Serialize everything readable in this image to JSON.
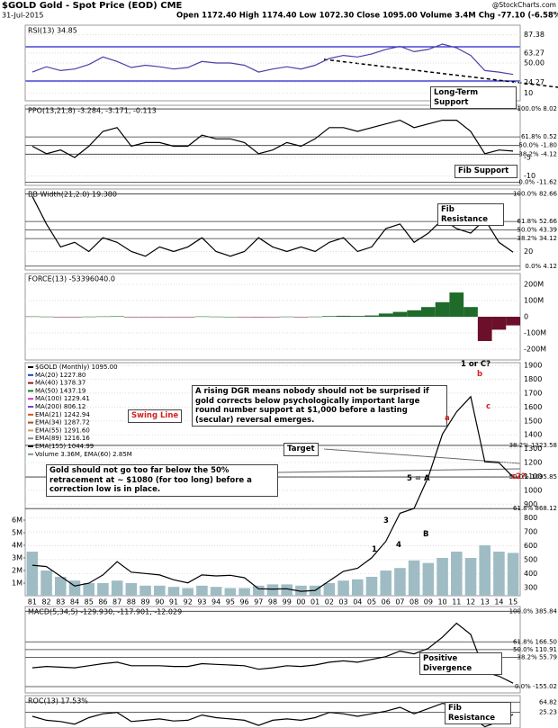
{
  "header": {
    "symbol": "$GOLD Gold - Spot Price (EOD) CME",
    "date": "31-Jul-2015",
    "quote": "Open 1172.40  High 1174.40  Low 1072.30  Close 1095.00  Volume 3.4M  Chg -77.10 (-6.58%)",
    "source": "@StockCharts.com"
  },
  "chart_data": [
    {
      "type": "line",
      "title": "RSI(13) 34.85",
      "color": "#4b3fa8",
      "values": [
        38,
        45,
        40,
        42,
        48,
        58,
        52,
        44,
        47,
        45,
        42,
        44,
        52,
        50,
        50,
        47,
        38,
        42,
        45,
        42,
        47,
        56,
        60,
        58,
        62,
        68,
        72,
        65,
        68,
        75,
        70,
        60,
        40,
        38,
        34.85
      ],
      "ylim": [
        0,
        100
      ],
      "yticks": [
        10,
        24.27,
        {
          "value": 50,
          "label": "50.00"
        },
        63.27,
        87.38
      ],
      "annotations": [
        "Long-Term Support"
      ]
    },
    {
      "type": "line",
      "title": "PPO(13,21,8) -3.284, -3.171, -0.113",
      "color": "#000000",
      "values": [
        -2,
        -4,
        -3,
        -5,
        -2,
        2,
        3,
        -2,
        -1,
        -1,
        -2,
        -2,
        1,
        0,
        0,
        -1,
        -4,
        -3,
        -1,
        -2,
        0,
        3,
        3,
        2,
        3,
        4,
        5,
        3,
        4,
        5,
        5,
        2,
        -4,
        -3,
        -3.284
      ],
      "ylim": [
        -12.5,
        9
      ],
      "yticks": [
        -10,
        -5
      ],
      "fibs": [
        {
          "value": 8.02,
          "label": "100.0% 8.02"
        },
        {
          "value": 0.52,
          "label": "61.8% 0.52"
        },
        {
          "value": -1.8,
          "label": "50.0% -1.80"
        },
        {
          "value": -4.12,
          "label": "38.2% -4.12"
        },
        {
          "value": -11.62,
          "label": "0.0% -11.62"
        }
      ],
      "annotations": [
        "Fib Support"
      ]
    },
    {
      "type": "line",
      "title": "BB Width(21,2.0) 19.380",
      "color": "#000000",
      "values": [
        80,
        50,
        25,
        30,
        20,
        35,
        30,
        20,
        15,
        25,
        20,
        25,
        35,
        20,
        15,
        20,
        35,
        25,
        20,
        25,
        20,
        30,
        35,
        20,
        25,
        45,
        50,
        30,
        40,
        55,
        45,
        40,
        55,
        30,
        19.38
      ],
      "ylim": [
        0,
        88
      ],
      "yticks": [
        20
      ],
      "fibs": [
        {
          "value": 82.66,
          "label": "100.0% 82.66"
        },
        {
          "value": 52.66,
          "label": "61.8% 52.66"
        },
        {
          "value": 43.39,
          "label": "50.0% 43.39"
        },
        {
          "value": 34.12,
          "label": "38.2% 34.12"
        },
        {
          "value": 4.12,
          "label": "0.0% 4.12"
        }
      ],
      "annotations": [
        "Fib Resistance"
      ]
    },
    {
      "type": "bar",
      "title": "FORCE(13) -53396040.0",
      "color": "#1f6b2a",
      "negative_color": "#6b0f2a",
      "values": [
        2000000,
        1000000,
        -1000000,
        -2000000,
        1000000,
        2000000,
        3000000,
        -1000000,
        -1000000,
        -1000000,
        -1000000,
        -1000000,
        2000000,
        1000000,
        0,
        -1000000,
        -3000000,
        -1000000,
        1000000,
        -1000000,
        1000000,
        4000000,
        6000000,
        5000000,
        8000000,
        20000000,
        30000000,
        40000000,
        60000000,
        90000000,
        150000000,
        60000000,
        -150000000,
        -80000000,
        -53396040
      ],
      "ylim": [
        -267000000,
        267000000
      ],
      "yticks": [
        {
          "value": -200000000,
          "label": "-200M"
        },
        {
          "value": -100000000,
          "label": "-100M"
        },
        0,
        {
          "value": 100000000,
          "label": "100M"
        },
        {
          "value": 200000000,
          "label": "200M"
        }
      ]
    },
    {
      "type": "line",
      "categories": [
        "81",
        "82",
        "83",
        "84",
        "85",
        "86",
        "87",
        "88",
        "89",
        "90",
        "91",
        "92",
        "93",
        "94",
        "95",
        "96",
        "97",
        "98",
        "99",
        "00",
        "01",
        "02",
        "03",
        "04",
        "05",
        "06",
        "07",
        "08",
        "09",
        "10",
        "11",
        "12",
        "13",
        "14",
        "15"
      ],
      "series": [
        {
          "name": "$GOLD (Monthly) 1095.00",
          "color": "#000000",
          "values": [
            460,
            450,
            380,
            310,
            330,
            390,
            485,
            410,
            400,
            390,
            355,
            333,
            390,
            383,
            387,
            370,
            290,
            288,
            290,
            272,
            278,
            347,
            416,
            438,
            513,
            632,
            834,
            869,
            1096,
            1405,
            1565,
            1675,
            1205,
            1199,
            1095
          ]
        },
        {
          "name": "Volume 3.36M, EMA(60) 2.85M",
          "color": "#9fbcc4",
          "axis": "y2",
          "values": [
            3500000,
            2000000,
            1500000,
            1200000,
            1000000,
            1000000,
            1200000,
            1000000,
            800000,
            800000,
            700000,
            600000,
            800000,
            700000,
            600000,
            600000,
            800000,
            900000,
            900000,
            800000,
            800000,
            1000000,
            1200000,
            1300000,
            1500000,
            2000000,
            2200000,
            2800000,
            2600000,
            3000000,
            3500000,
            3000000,
            4000000,
            3500000,
            3400000
          ]
        }
      ],
      "overlays": [
        {
          "name": "MA(20) 1227.80",
          "color": "#1f3fbf"
        },
        {
          "name": "MA(40) 1378.37",
          "color": "#8b1a1a"
        },
        {
          "name": "MA(50) 1437.19",
          "color": "#1a7a3a"
        },
        {
          "name": "MA(100) 1229.41",
          "color": "#d633c8"
        },
        {
          "name": "MA(200) 806.12",
          "color": "#7a3fd6"
        },
        {
          "name": "EMA(21) 1242.94",
          "color": "#e0501a"
        },
        {
          "name": "EMA(34) 1287.72",
          "color": "#a0522d"
        },
        {
          "name": "EMA(55) 1291.60",
          "color": "#c8a060"
        },
        {
          "name": "EMA(89) 1216.16",
          "color": "#9a8a7a"
        },
        {
          "name": "EMA(155) 1044.99",
          "color": "#000000"
        }
      ],
      "ylim": [
        240,
        1920
      ],
      "yticks": [
        300,
        400,
        500,
        600,
        700,
        800,
        900,
        1000,
        1100,
        1200,
        1300,
        1400,
        1500,
        1600,
        1700,
        1800,
        1900
      ],
      "y2lim": [
        0,
        18500000
      ],
      "y2ticks": [
        {
          "value": 1000000,
          "label": "1M"
        },
        {
          "value": 2000000,
          "label": "2M"
        },
        {
          "value": 3000000,
          "label": "3M"
        },
        {
          "value": 4000000,
          "label": "4M"
        },
        {
          "value": 5000000,
          "label": "5M"
        },
        {
          "value": 6000000,
          "label": "6M"
        }
      ],
      "fibs": [
        {
          "value": 868.12,
          "label": "61.8% 868.12"
        },
        {
          "value": 1095.85,
          "label": "50.0% 1095.85"
        },
        {
          "value": 1323.58,
          "label": "38.2% 1323.58"
        }
      ],
      "annotations": [
        "A rising DGR means nobody should not be surprised if gold corrects below psychologically important large round number support at $1,000 before a lasting (secular) reversal emerges.",
        "Swing Line",
        "Target",
        "Gold should not go too far below the 50% retracement at ~ $1080 (for too long) before a correction low is in place.",
        "1 or C?",
        "b",
        "a",
        "c",
        "c2?",
        "5 = A",
        "3",
        "4",
        "B",
        "1"
      ]
    },
    {
      "type": "line",
      "title": "MACD(5,34,5) -129.930, -117.901, -12.029",
      "color": "#000000",
      "values": [
        -20,
        -10,
        -15,
        -20,
        -5,
        10,
        20,
        -5,
        -5,
        -5,
        -10,
        -10,
        10,
        5,
        0,
        -5,
        -30,
        -20,
        -5,
        -10,
        0,
        20,
        30,
        20,
        40,
        60,
        100,
        80,
        120,
        200,
        300,
        220,
        -50,
        -80,
        -129.93
      ],
      "ylim": [
        -200,
        420
      ],
      "fibs": [
        {
          "value": 385.84,
          "label": "100.0% 385.84"
        },
        {
          "value": 166.5,
          "label": "61.8% 166.50"
        },
        {
          "value": 110.91,
          "label": "50.0% 110.91"
        },
        {
          "value": 55.79,
          "label": "38.2% 55.79"
        },
        {
          "value": -155.02,
          "label": "0.0% -155.02"
        }
      ],
      "annotations": [
        "Positive Divergence"
      ]
    },
    {
      "type": "line",
      "title": "ROC(13) 17.53%",
      "color": "#000000",
      "values": [
        10,
        -5,
        -10,
        -20,
        5,
        20,
        25,
        -10,
        -5,
        0,
        -8,
        -5,
        15,
        5,
        0,
        -5,
        -25,
        -5,
        0,
        -5,
        5,
        25,
        20,
        10,
        20,
        30,
        45,
        20,
        40,
        60,
        50,
        10,
        -30,
        -10,
        17.53
      ],
      "ylim": [
        -35,
        90
      ],
      "fibs": [
        {
          "value": 25.23,
          "label": "25.23"
        },
        {
          "value": 64.82,
          "label": "64.82"
        }
      ],
      "annotations": [
        "Fib Resistance"
      ]
    }
  ]
}
